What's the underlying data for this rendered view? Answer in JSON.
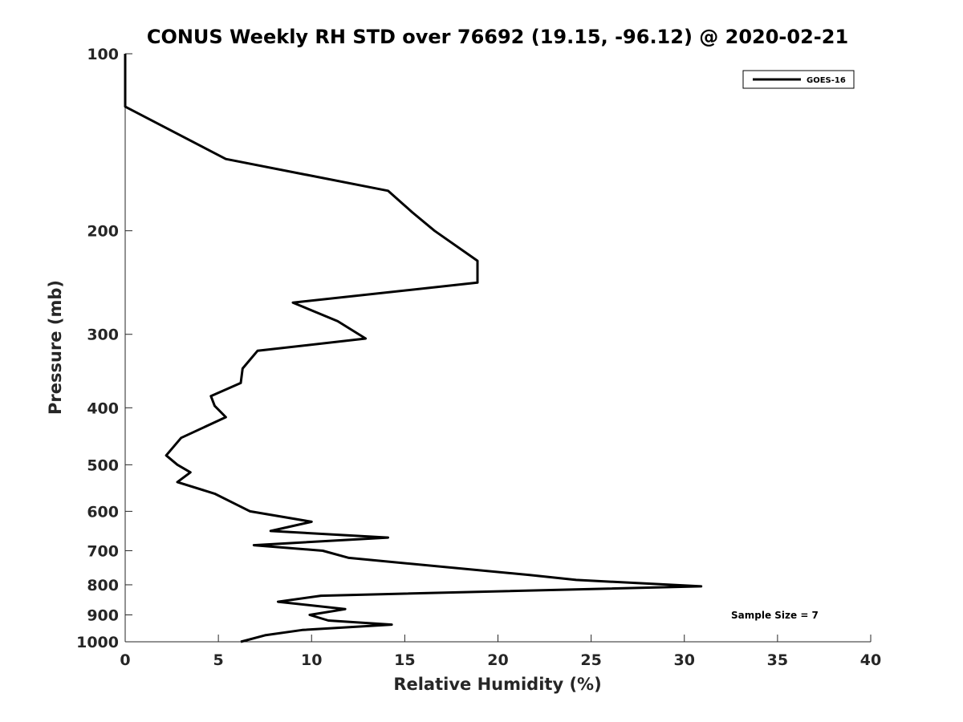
{
  "chart_data": {
    "type": "line",
    "title": "CONUS Weekly RH STD over 76692 (19.15, -96.12) @ 2020-02-21",
    "xlabel": "Relative Humidity (%)",
    "ylabel": "Pressure (mb)",
    "xlim": [
      0,
      40
    ],
    "ylim": [
      100,
      1000
    ],
    "y_scale": "log",
    "y_reversed": true,
    "grid": false,
    "legend_position": "top-right",
    "x_ticks": [
      0,
      5,
      10,
      15,
      20,
      25,
      30,
      35,
      40
    ],
    "x_tick_labels": [
      "0",
      "5",
      "10",
      "15",
      "20",
      "25",
      "30",
      "35",
      "40"
    ],
    "y_ticks": [
      100,
      200,
      300,
      400,
      500,
      600,
      700,
      800,
      900,
      1000
    ],
    "y_tick_labels": [
      "100",
      "200",
      "300",
      "400",
      "500",
      "600",
      "700",
      "800",
      "900",
      "1000"
    ],
    "series": [
      {
        "name": "GOES-16",
        "color": "#000000",
        "x": [
          0,
          0,
          5.4,
          14.1,
          15.4,
          16.6,
          18.9,
          18.9,
          9.0,
          11.4,
          12.9,
          7.1,
          6.3,
          6.2,
          4.6,
          4.8,
          5.4,
          3.0,
          2.2,
          2.8,
          3.5,
          2.8,
          4.8,
          6.0,
          6.7,
          10.0,
          7.8,
          14.1,
          6.9,
          10.6,
          12.0,
          21.7,
          24.2,
          30.9,
          10.5,
          8.2,
          11.8,
          9.9,
          10.9,
          14.3,
          9.5,
          7.5,
          6.2
        ],
        "y": [
          100,
          123,
          151,
          171,
          186,
          200,
          225,
          245,
          265,
          285,
          305,
          320,
          343,
          363,
          382,
          397,
          415,
          450,
          482,
          500,
          515,
          535,
          560,
          585,
          600,
          625,
          648,
          665,
          685,
          700,
          720,
          770,
          785,
          805,
          835,
          855,
          880,
          900,
          920,
          935,
          955,
          975,
          1000
        ]
      }
    ],
    "annotations": [
      "Sample Size = 7"
    ]
  }
}
